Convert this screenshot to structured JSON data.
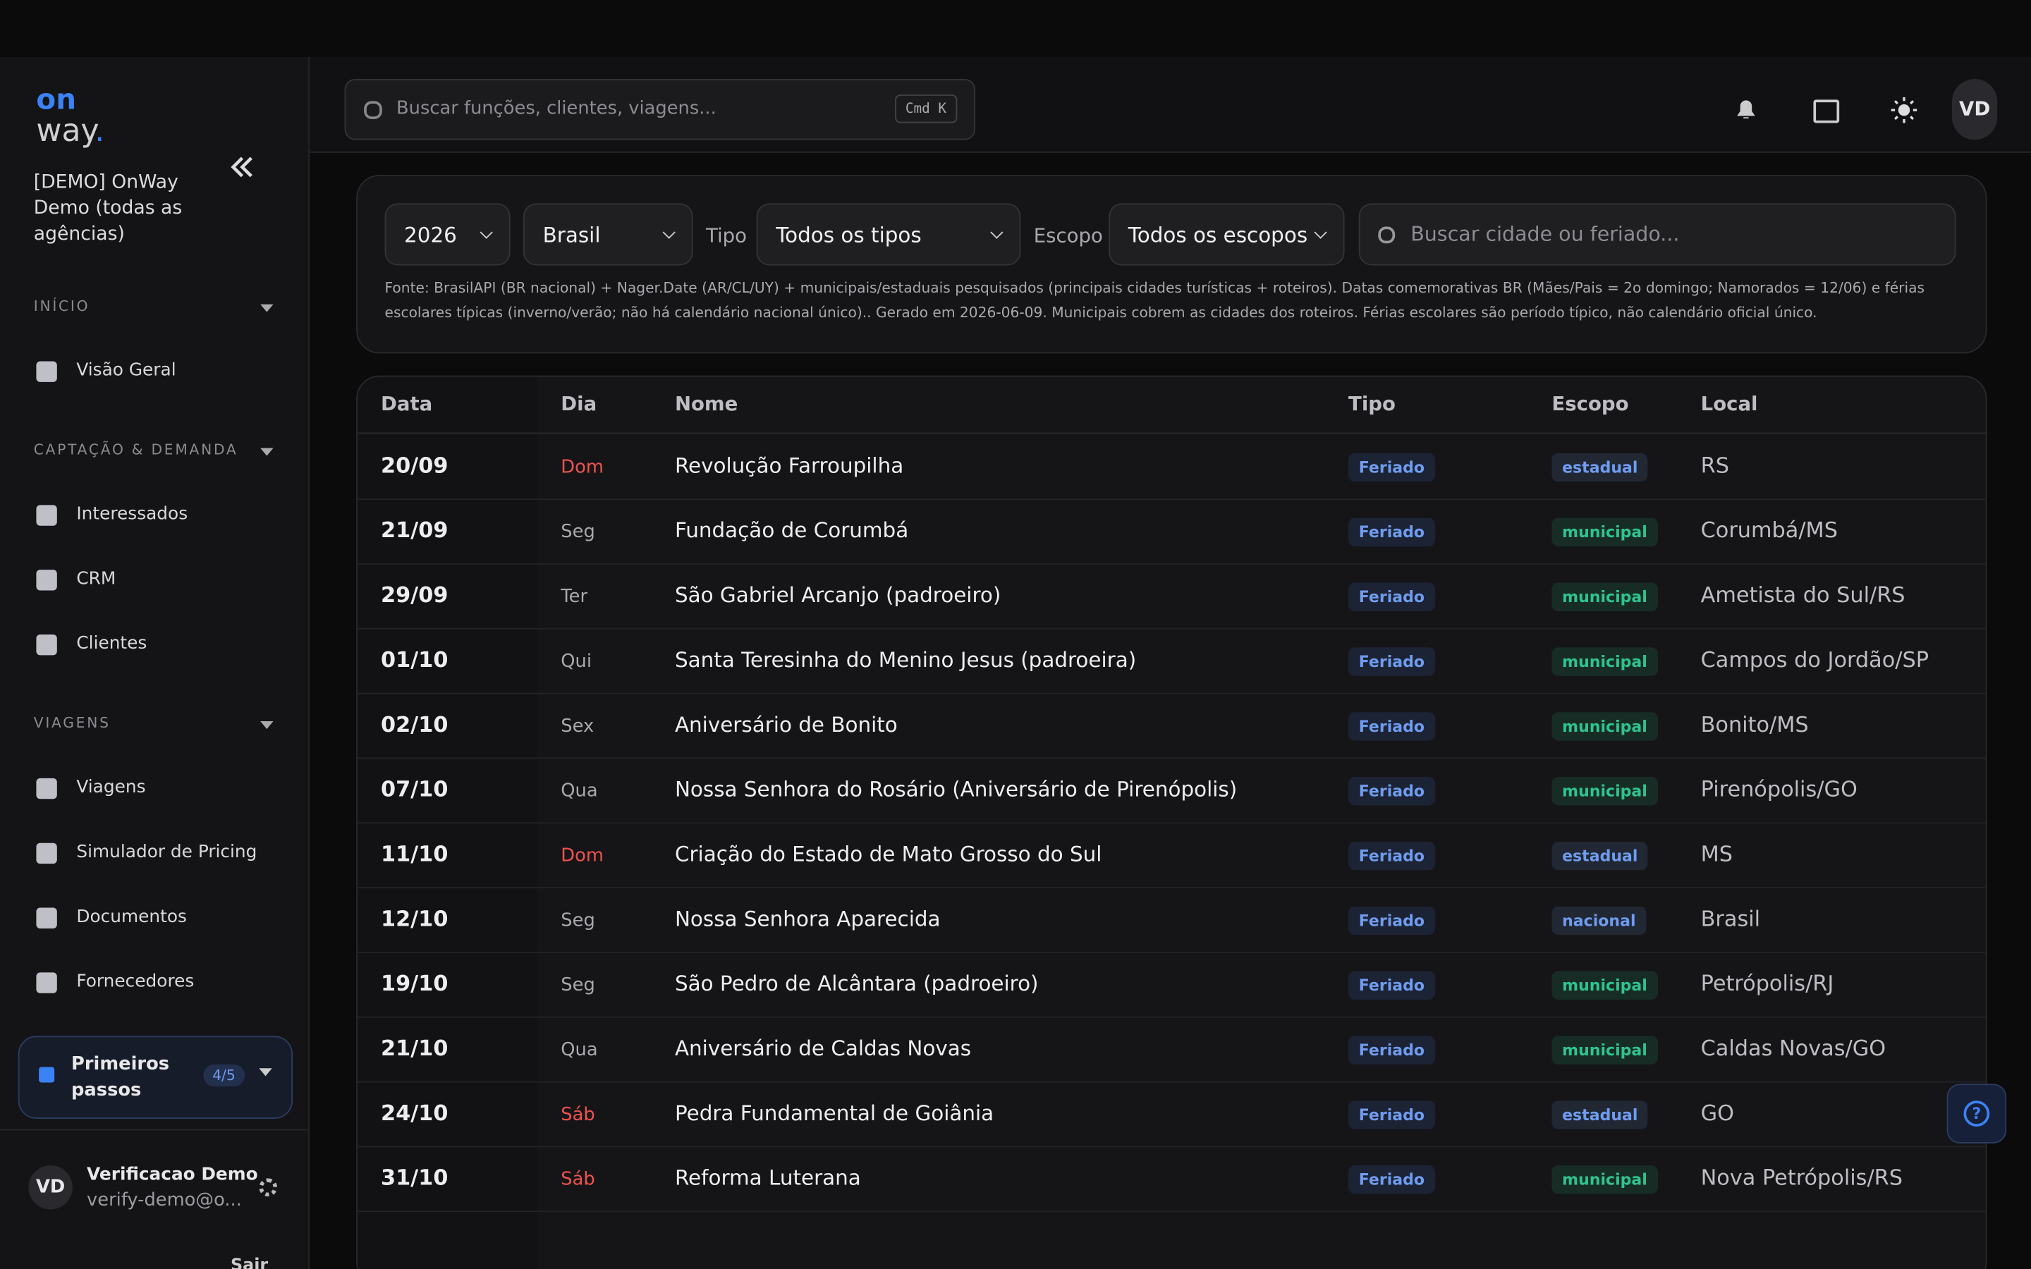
{
  "sidebar": {
    "logo_top": "on",
    "logo_bottom": "way",
    "org": "[DEMO] OnWay Demo (todas as agências)",
    "sections": [
      {
        "title": "INÍCIO",
        "items": [
          "Visão Geral"
        ]
      },
      {
        "title": "CAPTAÇÃO & DEMANDA",
        "items": [
          "Interessados",
          "CRM",
          "Clientes"
        ]
      },
      {
        "title": "VIAGENS",
        "items": [
          "Viagens",
          "Simulador de Pricing",
          "Documentos",
          "Fornecedores"
        ]
      }
    ],
    "onboarding": {
      "label": "Primeiros passos",
      "progress": "4/5"
    },
    "user": {
      "initials": "VD",
      "name": "Verificacao Demo",
      "email": "verify-demo@o...",
      "logout": "Sair"
    }
  },
  "topbar": {
    "search_placeholder": "Buscar funções, clientes, viagens...",
    "shortcut": "Cmd K",
    "avatar": "VD"
  },
  "filters": {
    "year": "2026",
    "country": "Brasil",
    "type_label": "Tipo",
    "type_value": "Todos os tipos",
    "scope_label": "Escopo",
    "scope_value": "Todos os escopos",
    "search_placeholder": "Buscar cidade ou feriado...",
    "note": "Fonte: BrasilAPI (BR nacional) + Nager.Date (AR/CL/UY) + municipais/estaduais pesquisados (principais cidades turísticas + roteiros). Datas comemorativas BR (Mães/Pais = 2o domingo; Namorados = 12/06) e férias escolares típicas (inverno/verão; não há calendário nacional único).. Gerado em 2026-06-09. Municipais cobrem as cidades dos roteiros. Férias escolares são período típico, não calendário oficial único."
  },
  "table": {
    "headers": [
      "Data",
      "Dia",
      "Nome",
      "Tipo",
      "Escopo",
      "Local"
    ],
    "weekend_color": "#f0524f",
    "scope_colors": {
      "estadual": "#6f9cf0",
      "municipal": "#2fc48d",
      "nacional": "#6f9cf0"
    },
    "rows": [
      {
        "date": "20/09",
        "day": "Dom",
        "weekend": true,
        "name": "Revolução Farroupilha",
        "type": "Feriado",
        "scope": "estadual",
        "place": "RS"
      },
      {
        "date": "21/09",
        "day": "Seg",
        "weekend": false,
        "name": "Fundação de Corumbá",
        "type": "Feriado",
        "scope": "municipal",
        "place": "Corumbá/MS"
      },
      {
        "date": "29/09",
        "day": "Ter",
        "weekend": false,
        "name": "São Gabriel Arcanjo (padroeiro)",
        "type": "Feriado",
        "scope": "municipal",
        "place": "Ametista do Sul/RS"
      },
      {
        "date": "01/10",
        "day": "Qui",
        "weekend": false,
        "name": "Santa Teresinha do Menino Jesus (padroeira)",
        "type": "Feriado",
        "scope": "municipal",
        "place": "Campos do Jordão/SP"
      },
      {
        "date": "02/10",
        "day": "Sex",
        "weekend": false,
        "name": "Aniversário de Bonito",
        "type": "Feriado",
        "scope": "municipal",
        "place": "Bonito/MS"
      },
      {
        "date": "07/10",
        "day": "Qua",
        "weekend": false,
        "name": "Nossa Senhora do Rosário (Aniversário de Pirenópolis)",
        "type": "Feriado",
        "scope": "municipal",
        "place": "Pirenópolis/GO"
      },
      {
        "date": "11/10",
        "day": "Dom",
        "weekend": true,
        "name": "Criação do Estado de Mato Grosso do Sul",
        "type": "Feriado",
        "scope": "estadual",
        "place": "MS"
      },
      {
        "date": "12/10",
        "day": "Seg",
        "weekend": false,
        "name": "Nossa Senhora Aparecida",
        "type": "Feriado",
        "scope": "nacional",
        "place": "Brasil"
      },
      {
        "date": "19/10",
        "day": "Seg",
        "weekend": false,
        "name": "São Pedro de Alcântara (padroeiro)",
        "type": "Feriado",
        "scope": "municipal",
        "place": "Petrópolis/RJ"
      },
      {
        "date": "21/10",
        "day": "Qua",
        "weekend": false,
        "name": "Aniversário de Caldas Novas",
        "type": "Feriado",
        "scope": "municipal",
        "place": "Caldas Novas/GO"
      },
      {
        "date": "24/10",
        "day": "Sáb",
        "weekend": true,
        "name": "Pedra Fundamental de Goiânia",
        "type": "Feriado",
        "scope": "estadual",
        "place": "GO"
      },
      {
        "date": "31/10",
        "day": "Sáb",
        "weekend": true,
        "name": "Reforma Luterana",
        "type": "Feriado",
        "scope": "municipal",
        "place": "Nova Petrópolis/RS"
      }
    ]
  }
}
